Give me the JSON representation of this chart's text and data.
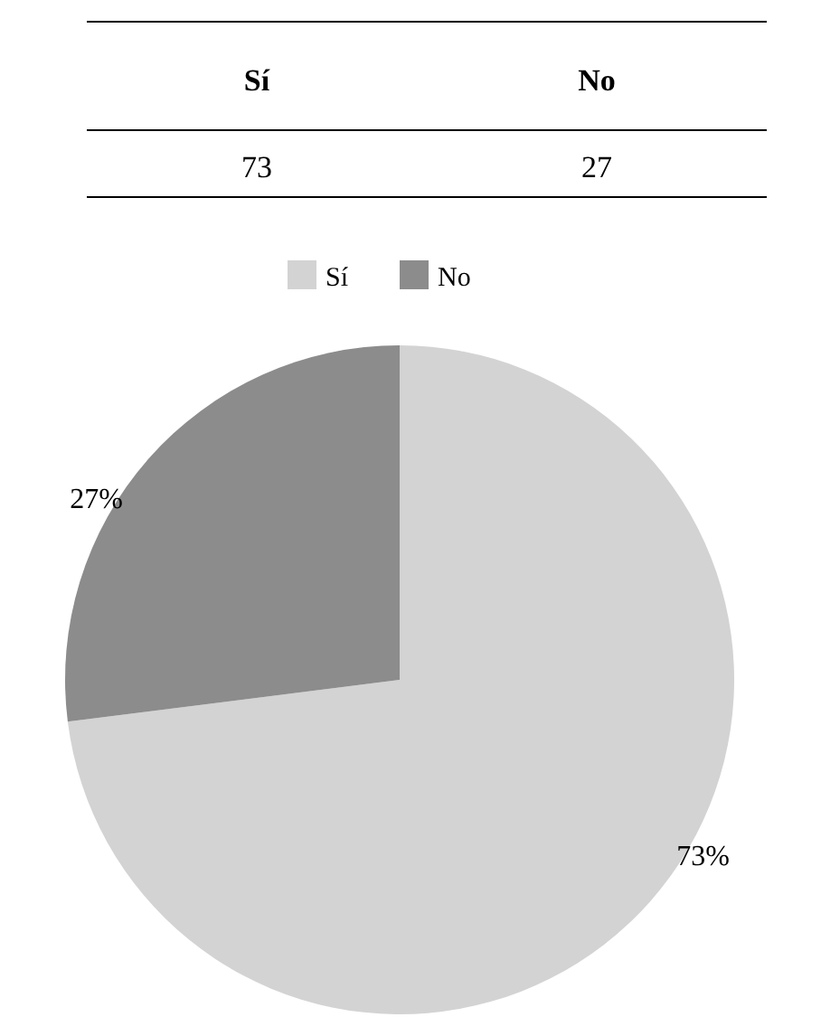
{
  "chart_data": {
    "type": "pie",
    "categories": [
      "Sí",
      "No"
    ],
    "values": [
      73,
      27
    ],
    "colors": [
      "#d3d3d3",
      "#8c8c8c"
    ],
    "value_labels": [
      "73%",
      "27%"
    ],
    "legend": "top",
    "annotations": [
      "73",
      "27"
    ]
  }
}
